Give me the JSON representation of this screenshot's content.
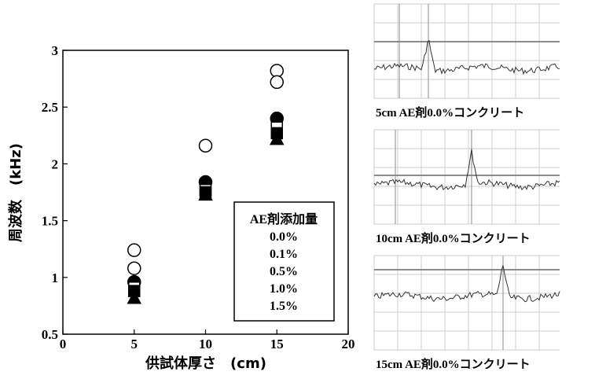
{
  "chart_data": {
    "type": "scatter",
    "xlabel": "供試体厚さ　(cm)",
    "ylabel": "周波数　(kHz)",
    "xlim": [
      0,
      20
    ],
    "xticks": [
      0,
      5,
      10,
      15,
      20
    ],
    "ylim": [
      0.5,
      3
    ],
    "yticks": [
      0.5,
      1,
      1.5,
      2,
      2.5,
      3
    ],
    "legend_title": "AE剤添加量",
    "series": [
      {
        "name": "0.0%",
        "marker": "circle-open",
        "x": [
          5,
          5,
          10,
          15,
          15
        ],
        "values": [
          1.24,
          1.08,
          2.16,
          2.82,
          2.72
        ]
      },
      {
        "name": "0.1%",
        "marker": "circle-filled",
        "x": [
          5,
          10,
          15
        ],
        "values": [
          0.96,
          1.84,
          2.4
        ]
      },
      {
        "name": "0.5%",
        "marker": "square-open",
        "x": [
          5,
          10,
          15
        ],
        "values": [
          0.91,
          1.77,
          2.32
        ]
      },
      {
        "name": "1.0%",
        "marker": "square-filled",
        "x": [
          5,
          10,
          15
        ],
        "values": [
          0.88,
          1.75,
          2.27
        ]
      },
      {
        "name": "1.5%",
        "marker": "triangle-filled",
        "x": [
          5,
          10,
          15
        ],
        "values": [
          0.82,
          1.73,
          2.22
        ]
      }
    ]
  },
  "waveforms": [
    {
      "caption": "5cm AE剤0.0%コンクリート"
    },
    {
      "caption": "10cm AE剤0.0%コンクリート"
    },
    {
      "caption": "15cm AE剤0.0%コンクリート"
    }
  ]
}
